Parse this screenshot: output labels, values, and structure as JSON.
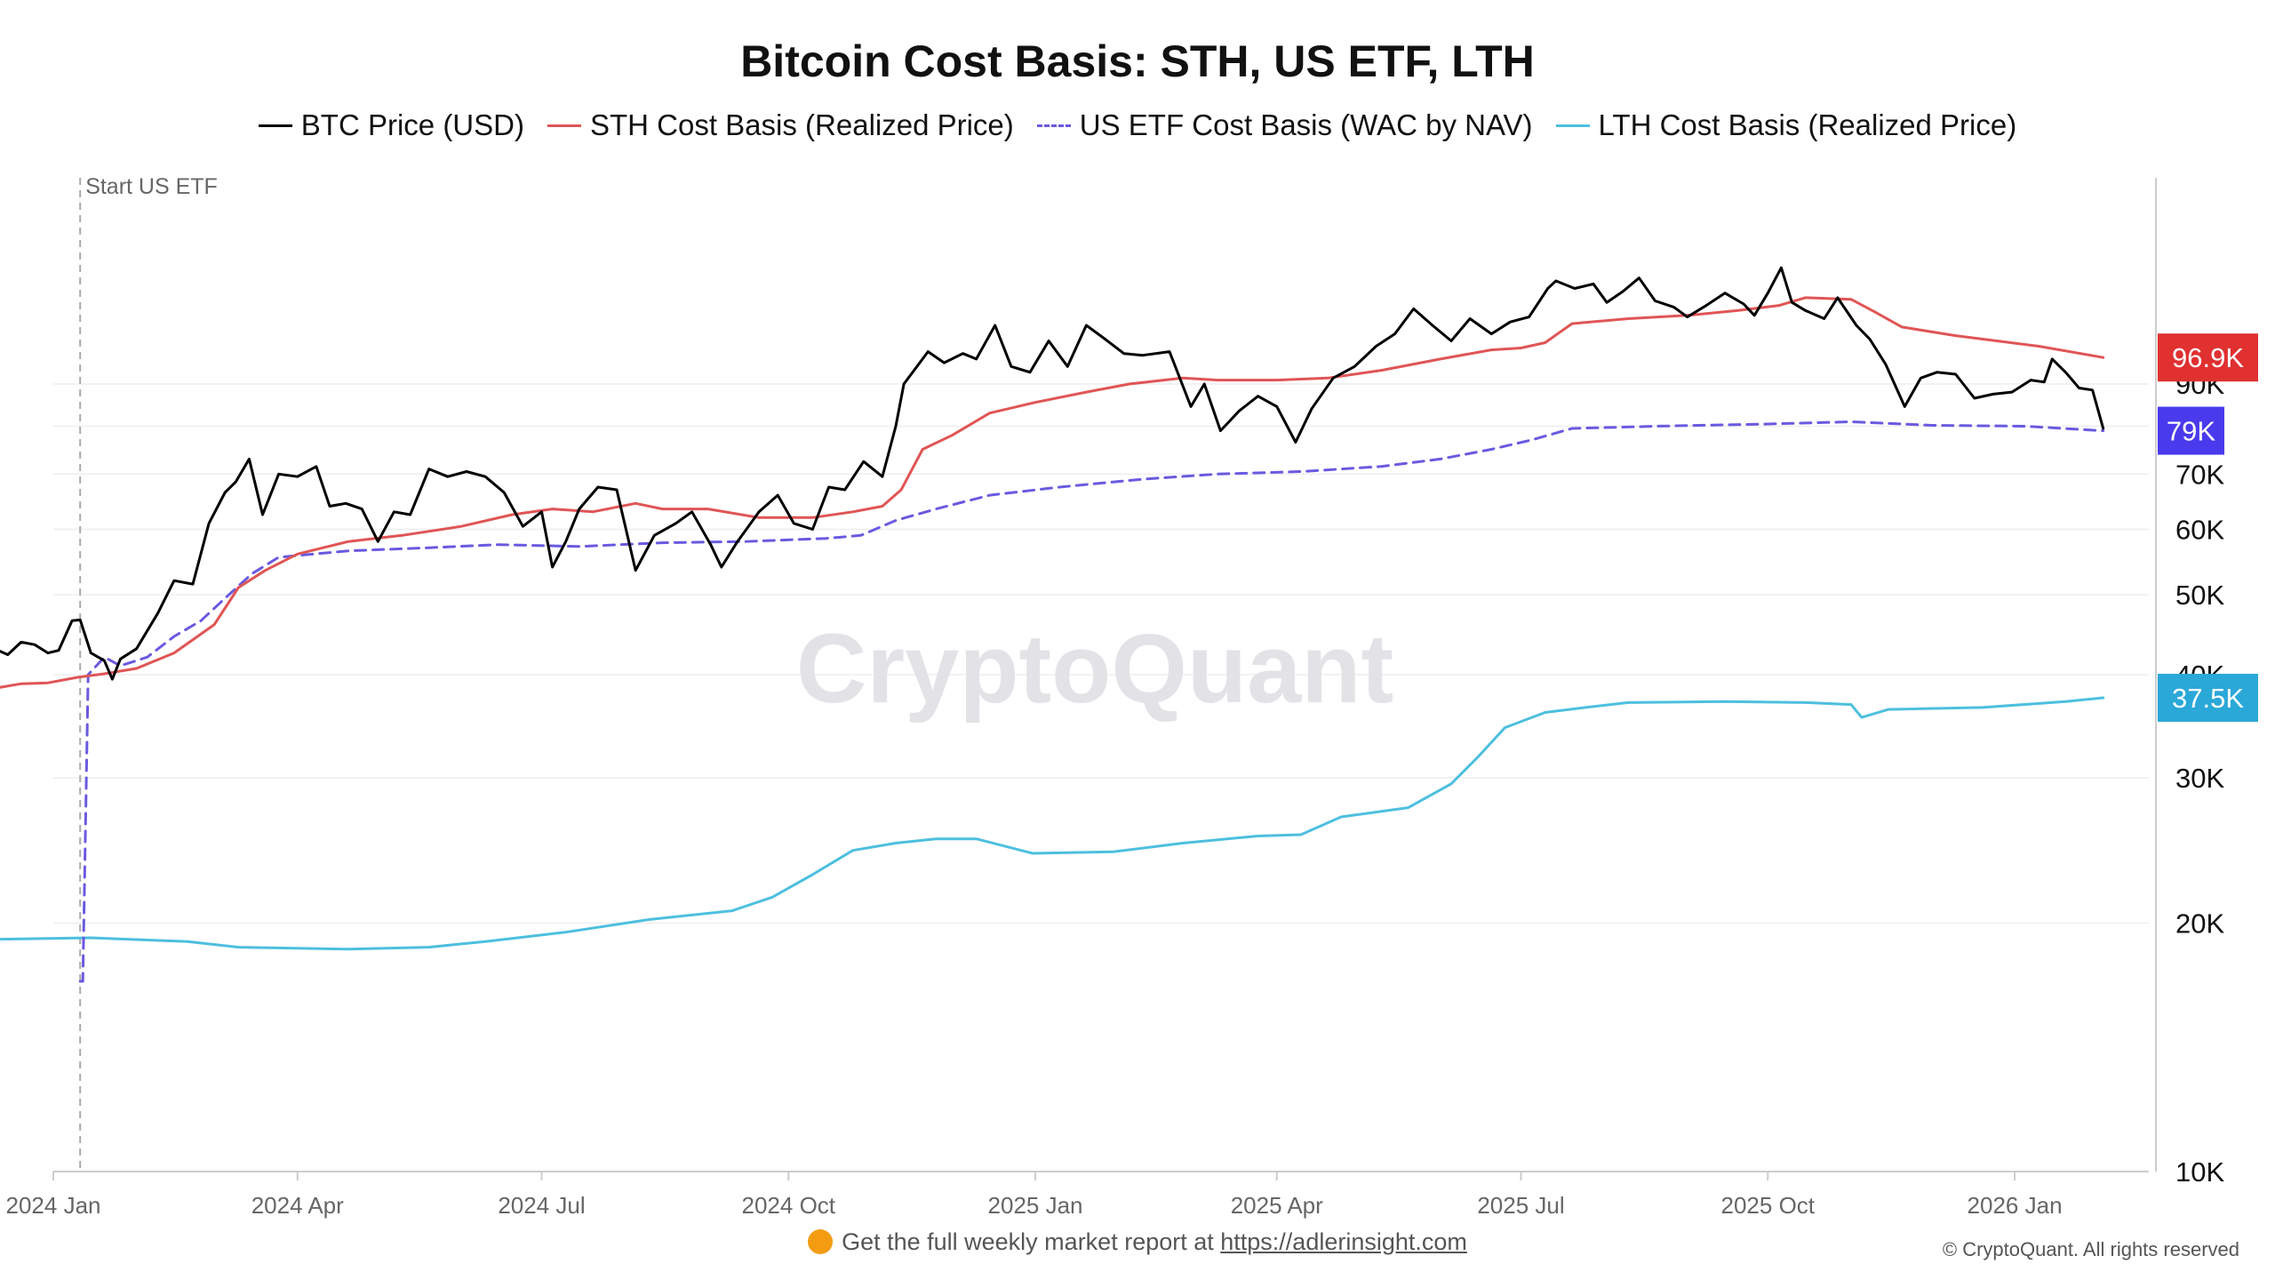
{
  "chart_data": {
    "type": "line",
    "title": "Bitcoin Cost Basis: STH, US ETF, LTH",
    "xlabel": "",
    "ylabel": "",
    "y_scale": "log",
    "ylim": [
      10000,
      160000
    ],
    "xlim": [
      "2024-01-01",
      "2026-02-20"
    ],
    "grid": true,
    "legend": "top",
    "x_ticks": [
      "2024 Jan",
      "2024 Apr",
      "2024 Jul",
      "2024 Oct",
      "2025 Jan",
      "2025 Apr",
      "2025 Jul",
      "2025 Oct",
      "2026 Jan"
    ],
    "y_ticks": [
      "10K",
      "20K",
      "30K",
      "40K",
      "50K",
      "60K",
      "70K",
      "80K",
      "90K"
    ],
    "annotation": {
      "label": "Start US ETF",
      "date": "2024-01-11"
    },
    "end_labels": [
      {
        "text": "96.9K",
        "color": "#e03030",
        "value": 96900
      },
      {
        "text": "79K",
        "color": "#4a3aed",
        "value": 79000
      },
      {
        "text": "37.5K",
        "color": "#2aa8d8",
        "value": 37500
      }
    ],
    "watermark": "CryptoQuant",
    "series": [
      {
        "name": "BTC Price (USD)",
        "color": "#000000",
        "style": "solid",
        "points": [
          [
            "2023-12-01",
            41500
          ],
          [
            "2023-12-05",
            44500
          ],
          [
            "2023-12-10",
            43000
          ],
          [
            "2023-12-15",
            42300
          ],
          [
            "2023-12-20",
            43800
          ],
          [
            "2023-12-25",
            43500
          ],
          [
            "2023-12-30",
            42500
          ],
          [
            "2024-01-03",
            42800
          ],
          [
            "2024-01-08",
            46500
          ],
          [
            "2024-01-11",
            46600
          ],
          [
            "2024-01-15",
            42500
          ],
          [
            "2024-01-20",
            41600
          ],
          [
            "2024-01-23",
            39500
          ],
          [
            "2024-01-26",
            41800
          ],
          [
            "2024-02-01",
            43000
          ],
          [
            "2024-02-09",
            47500
          ],
          [
            "2024-02-15",
            52000
          ],
          [
            "2024-02-22",
            51500
          ],
          [
            "2024-02-28",
            61000
          ],
          [
            "2024-03-05",
            66500
          ],
          [
            "2024-03-09",
            68500
          ],
          [
            "2024-03-14",
            73000
          ],
          [
            "2024-03-19",
            62500
          ],
          [
            "2024-03-25",
            70000
          ],
          [
            "2024-04-01",
            69500
          ],
          [
            "2024-04-08",
            71500
          ],
          [
            "2024-04-13",
            64000
          ],
          [
            "2024-04-19",
            64500
          ],
          [
            "2024-04-25",
            63500
          ],
          [
            "2024-05-01",
            58000
          ],
          [
            "2024-05-07",
            63000
          ],
          [
            "2024-05-13",
            62500
          ],
          [
            "2024-05-20",
            71000
          ],
          [
            "2024-05-27",
            69500
          ],
          [
            "2024-06-03",
            70500
          ],
          [
            "2024-06-10",
            69500
          ],
          [
            "2024-06-17",
            66500
          ],
          [
            "2024-06-24",
            60500
          ],
          [
            "2024-07-01",
            63000
          ],
          [
            "2024-07-05",
            54000
          ],
          [
            "2024-07-10",
            58000
          ],
          [
            "2024-07-15",
            63500
          ],
          [
            "2024-07-22",
            67500
          ],
          [
            "2024-07-29",
            67000
          ],
          [
            "2024-08-05",
            53500
          ],
          [
            "2024-08-12",
            59000
          ],
          [
            "2024-08-20",
            61000
          ],
          [
            "2024-08-26",
            63000
          ],
          [
            "2024-09-02",
            57500
          ],
          [
            "2024-09-06",
            54000
          ],
          [
            "2024-09-12",
            58000
          ],
          [
            "2024-09-20",
            63000
          ],
          [
            "2024-09-27",
            66000
          ],
          [
            "2024-10-03",
            61000
          ],
          [
            "2024-10-10",
            60000
          ],
          [
            "2024-10-16",
            67500
          ],
          [
            "2024-10-22",
            67000
          ],
          [
            "2024-10-29",
            72500
          ],
          [
            "2024-11-05",
            69500
          ],
          [
            "2024-11-10",
            80000
          ],
          [
            "2024-11-13",
            90000
          ],
          [
            "2024-11-22",
            98500
          ],
          [
            "2024-11-28",
            95500
          ],
          [
            "2024-12-05",
            98000
          ],
          [
            "2024-12-10",
            96500
          ],
          [
            "2024-12-17",
            106000
          ],
          [
            "2024-12-23",
            94500
          ],
          [
            "2024-12-30",
            93000
          ],
          [
            "2025-01-06",
            101500
          ],
          [
            "2025-01-13",
            94500
          ],
          [
            "2025-01-20",
            106000
          ],
          [
            "2025-01-27",
            102000
          ],
          [
            "2025-02-03",
            98000
          ],
          [
            "2025-02-10",
            97500
          ],
          [
            "2025-02-20",
            98500
          ],
          [
            "2025-02-28",
            84500
          ],
          [
            "2025-03-05",
            90000
          ],
          [
            "2025-03-11",
            79000
          ],
          [
            "2025-03-18",
            83500
          ],
          [
            "2025-03-25",
            87000
          ],
          [
            "2025-04-01",
            84500
          ],
          [
            "2025-04-08",
            76500
          ],
          [
            "2025-04-14",
            84000
          ],
          [
            "2025-04-22",
            91500
          ],
          [
            "2025-04-30",
            94500
          ],
          [
            "2025-05-08",
            100000
          ],
          [
            "2025-05-15",
            103500
          ],
          [
            "2025-05-22",
            111000
          ],
          [
            "2025-05-29",
            106000
          ],
          [
            "2025-06-05",
            101500
          ],
          [
            "2025-06-12",
            108000
          ],
          [
            "2025-06-20",
            103500
          ],
          [
            "2025-06-27",
            107000
          ],
          [
            "2025-07-04",
            108500
          ],
          [
            "2025-07-11",
            117500
          ],
          [
            "2025-07-14",
            120000
          ],
          [
            "2025-07-21",
            117500
          ],
          [
            "2025-07-28",
            119000
          ],
          [
            "2025-08-02",
            113000
          ],
          [
            "2025-08-08",
            116500
          ],
          [
            "2025-08-14",
            121000
          ],
          [
            "2025-08-20",
            113500
          ],
          [
            "2025-08-27",
            111500
          ],
          [
            "2025-09-01",
            108500
          ],
          [
            "2025-09-08",
            112000
          ],
          [
            "2025-09-15",
            116000
          ],
          [
            "2025-09-22",
            112500
          ],
          [
            "2025-09-26",
            109000
          ],
          [
            "2025-10-01",
            116000
          ],
          [
            "2025-10-06",
            124500
          ],
          [
            "2025-10-10",
            113000
          ],
          [
            "2025-10-15",
            110500
          ],
          [
            "2025-10-22",
            108000
          ],
          [
            "2025-10-27",
            114500
          ],
          [
            "2025-11-03",
            106000
          ],
          [
            "2025-11-08",
            102000
          ],
          [
            "2025-11-14",
            95000
          ],
          [
            "2025-11-21",
            84500
          ],
          [
            "2025-11-27",
            91500
          ],
          [
            "2025-12-03",
            93000
          ],
          [
            "2025-12-10",
            92500
          ],
          [
            "2025-12-17",
            86500
          ],
          [
            "2025-12-24",
            87500
          ],
          [
            "2025-12-31",
            88000
          ],
          [
            "2026-01-07",
            91000
          ],
          [
            "2026-01-12",
            90500
          ],
          [
            "2026-01-15",
            96500
          ],
          [
            "2026-01-20",
            93000
          ],
          [
            "2026-01-25",
            89000
          ],
          [
            "2026-01-30",
            88500
          ],
          [
            "2026-02-03",
            79500
          ]
        ]
      },
      {
        "name": "STH Cost Basis (Realized Price)",
        "color": "#e05555",
        "style": "solid",
        "points": [
          [
            "2023-12-01",
            37500
          ],
          [
            "2023-12-10",
            38500
          ],
          [
            "2023-12-20",
            39000
          ],
          [
            "2023-12-30",
            39100
          ],
          [
            "2024-01-10",
            39700
          ],
          [
            "2024-01-20",
            40100
          ],
          [
            "2024-02-01",
            40700
          ],
          [
            "2024-02-15",
            42500
          ],
          [
            "2024-03-01",
            46000
          ],
          [
            "2024-03-10",
            51000
          ],
          [
            "2024-03-20",
            53500
          ],
          [
            "2024-04-01",
            56000
          ],
          [
            "2024-04-20",
            58000
          ],
          [
            "2024-05-10",
            59000
          ],
          [
            "2024-06-01",
            60500
          ],
          [
            "2024-06-20",
            62500
          ],
          [
            "2024-07-05",
            63500
          ],
          [
            "2024-07-20",
            63000
          ],
          [
            "2024-08-05",
            64500
          ],
          [
            "2024-08-15",
            63500
          ],
          [
            "2024-09-01",
            63500
          ],
          [
            "2024-09-20",
            62000
          ],
          [
            "2024-10-10",
            62000
          ],
          [
            "2024-10-25",
            63000
          ],
          [
            "2024-11-05",
            64000
          ],
          [
            "2024-11-12",
            67000
          ],
          [
            "2024-11-20",
            75000
          ],
          [
            "2024-12-01",
            78000
          ],
          [
            "2024-12-15",
            83000
          ],
          [
            "2025-01-01",
            85500
          ],
          [
            "2025-01-20",
            88000
          ],
          [
            "2025-02-05",
            90000
          ],
          [
            "2025-02-25",
            91500
          ],
          [
            "2025-03-10",
            91000
          ],
          [
            "2025-04-01",
            91000
          ],
          [
            "2025-04-20",
            91500
          ],
          [
            "2025-05-10",
            93500
          ],
          [
            "2025-06-01",
            96500
          ],
          [
            "2025-06-20",
            99000
          ],
          [
            "2025-07-01",
            99500
          ],
          [
            "2025-07-10",
            101000
          ],
          [
            "2025-07-20",
            106500
          ],
          [
            "2025-08-10",
            108000
          ],
          [
            "2025-09-01",
            109000
          ],
          [
            "2025-09-20",
            110500
          ],
          [
            "2025-10-05",
            112000
          ],
          [
            "2025-10-15",
            114500
          ],
          [
            "2025-11-01",
            114000
          ],
          [
            "2025-11-10",
            110000
          ],
          [
            "2025-11-20",
            105500
          ],
          [
            "2025-12-10",
            103000
          ],
          [
            "2026-01-10",
            100000
          ],
          [
            "2026-02-03",
            96900
          ]
        ]
      },
      {
        "name": "US ETF Cost Basis (WAC by NAV)",
        "color": "#6a5ae0",
        "style": "dashed",
        "points": [
          [
            "2024-01-11",
            17000
          ],
          [
            "2024-01-12",
            17000
          ],
          [
            "2024-01-14",
            40000
          ],
          [
            "2024-01-20",
            42000
          ],
          [
            "2024-01-26",
            41000
          ],
          [
            "2024-02-05",
            42000
          ],
          [
            "2024-02-15",
            44500
          ],
          [
            "2024-02-25",
            46500
          ],
          [
            "2024-03-05",
            49500
          ],
          [
            "2024-03-15",
            53000
          ],
          [
            "2024-03-25",
            55500
          ],
          [
            "2024-04-20",
            56500
          ],
          [
            "2024-05-20",
            57000
          ],
          [
            "2024-06-15",
            57500
          ],
          [
            "2024-07-15",
            57200
          ],
          [
            "2024-08-15",
            57800
          ],
          [
            "2024-09-15",
            58000
          ],
          [
            "2024-10-15",
            58500
          ],
          [
            "2024-10-28",
            59000
          ],
          [
            "2024-11-10",
            61500
          ],
          [
            "2024-11-25",
            63500
          ],
          [
            "2024-12-15",
            66000
          ],
          [
            "2025-01-10",
            67500
          ],
          [
            "2025-02-10",
            69000
          ],
          [
            "2025-03-10",
            70000
          ],
          [
            "2025-04-10",
            70500
          ],
          [
            "2025-05-10",
            71500
          ],
          [
            "2025-06-01",
            73000
          ],
          [
            "2025-06-20",
            75000
          ],
          [
            "2025-07-05",
            77000
          ],
          [
            "2025-07-20",
            79500
          ],
          [
            "2025-08-20",
            80000
          ],
          [
            "2025-10-01",
            80500
          ],
          [
            "2025-11-01",
            81000
          ],
          [
            "2025-12-01",
            80200
          ],
          [
            "2026-01-05",
            80000
          ],
          [
            "2026-02-03",
            79000
          ]
        ]
      },
      {
        "name": "LTH Cost Basis (Realized Price)",
        "color": "#4dbfdf",
        "style": "solid",
        "points": [
          [
            "2023-12-01",
            19100
          ],
          [
            "2024-01-15",
            19200
          ],
          [
            "2024-02-20",
            19000
          ],
          [
            "2024-03-10",
            18700
          ],
          [
            "2024-04-20",
            18600
          ],
          [
            "2024-05-20",
            18700
          ],
          [
            "2024-06-10",
            19000
          ],
          [
            "2024-07-10",
            19500
          ],
          [
            "2024-08-10",
            20200
          ],
          [
            "2024-09-10",
            20700
          ],
          [
            "2024-09-25",
            21500
          ],
          [
            "2024-10-10",
            22900
          ],
          [
            "2024-10-25",
            24500
          ],
          [
            "2024-11-10",
            25000
          ],
          [
            "2024-11-25",
            25300
          ],
          [
            "2024-12-10",
            25300
          ],
          [
            "2024-12-31",
            24300
          ],
          [
            "2025-01-30",
            24400
          ],
          [
            "2025-02-25",
            25000
          ],
          [
            "2025-03-25",
            25500
          ],
          [
            "2025-04-10",
            25600
          ],
          [
            "2025-04-25",
            26900
          ],
          [
            "2025-05-20",
            27600
          ],
          [
            "2025-06-05",
            29500
          ],
          [
            "2025-06-15",
            31800
          ],
          [
            "2025-06-25",
            34500
          ],
          [
            "2025-07-10",
            36000
          ],
          [
            "2025-07-25",
            36500
          ],
          [
            "2025-08-10",
            37000
          ],
          [
            "2025-09-15",
            37100
          ],
          [
            "2025-10-15",
            37000
          ],
          [
            "2025-11-01",
            36800
          ],
          [
            "2025-11-05",
            35500
          ],
          [
            "2025-11-15",
            36300
          ],
          [
            "2025-12-20",
            36500
          ],
          [
            "2026-01-20",
            37100
          ],
          [
            "2026-02-03",
            37500
          ]
        ]
      }
    ]
  },
  "footer": {
    "note": "Get the full weekly market report at",
    "link_text": "https://adlerinsight.com",
    "copyright": "© CryptoQuant. All rights reserved"
  }
}
